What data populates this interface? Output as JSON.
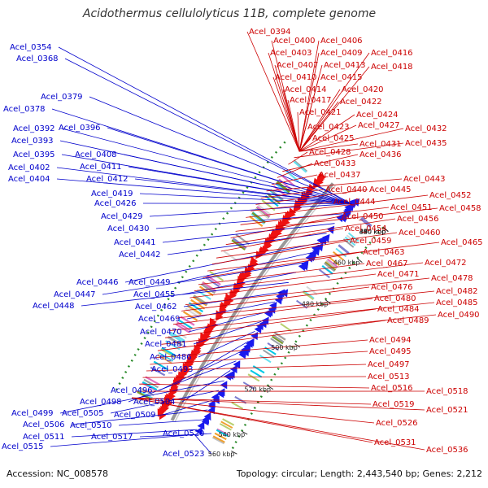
{
  "title": "Acidothermus cellulolyticus 11B, complete genome",
  "footer": {
    "accession": "Accession: NC_008578",
    "summary": "Topology: circular; Length: 2,443,540 bp; Genes: 2,212"
  },
  "colors": {
    "forward_feature": "#1a1aee",
    "reverse_feature": "#ee1111",
    "left_label": "#0000cc",
    "right_label": "#cc0000",
    "backbone": "#999999",
    "gc_skew_dots": "#2a8a2a"
  },
  "ticks": [
    "360 kbp",
    "380 kbp",
    "400 kbp",
    "420 kbp",
    "440 kbp",
    "460 kbp",
    "480 kbp",
    "500 kbp",
    "520 kbp",
    "540 kbp",
    "560 kbp"
  ],
  "left_labels": [
    "Acel_0354",
    "Acel_0368",
    "Acel_0379",
    "Acel_0378",
    "Acel_0396",
    "Acel_0392",
    "Acel_0393",
    "Acel_0395",
    "Acel_0408",
    "Acel_0411",
    "Acel_0402",
    "Acel_0404",
    "Acel_0412",
    "Acel_0419",
    "Acel_0426",
    "Acel_0429",
    "Acel_0430",
    "Acel_0441",
    "Acel_0442",
    "Acel_0446",
    "Acel_0449",
    "Acel_0447",
    "Acel_0455",
    "Acel_0448",
    "Acel_0462",
    "Acel_0469",
    "Acel_0470",
    "Acel_0481",
    "Acel_0486",
    "Acel_0493",
    "Acel_0496",
    "Acel_0498",
    "Acel_0504",
    "Acel_0499",
    "Acel_0505",
    "Acel_0509",
    "Acel_0506",
    "Acel_0510",
    "Acel_0511",
    "Acel_0517",
    "Acel_0520",
    "Acel_0515",
    "Acel_0523"
  ],
  "right_labels": [
    "Acel_0394",
    "Acel_0400",
    "Acel_0406",
    "Acel_0403",
    "Acel_0409",
    "Acel_0416",
    "Acel_0407",
    "Acel_0413",
    "Acel_0418",
    "Acel_0410",
    "Acel_0415",
    "Acel_0414",
    "Acel_0420",
    "Acel_0417",
    "Acel_0422",
    "Acel_0421",
    "Acel_0424",
    "Acel_0423",
    "Acel_0427",
    "Acel_0432",
    "Acel_0425",
    "Acel_0431",
    "Acel_0435",
    "Acel_0428",
    "Acel_0436",
    "Acel_0433",
    "Acel_0437",
    "Acel_0443",
    "Acel_0440",
    "Acel_0445",
    "Acel_0444",
    "Acel_0452",
    "Acel_0451",
    "Acel_0458",
    "Acel_0450",
    "Acel_0456",
    "Acel_0454",
    "Acel_0460",
    "Acel_0459",
    "Acel_0465",
    "Acel_0463",
    "Acel_0467",
    "Acel_0472",
    "Acel_0471",
    "Acel_0478",
    "Acel_0476",
    "Acel_0482",
    "Acel_0480",
    "Acel_0485",
    "Acel_0484",
    "Acel_0490",
    "Acel_0489",
    "Acel_0494",
    "Acel_0495",
    "Acel_0497",
    "Acel_0513",
    "Acel_0516",
    "Acel_0518",
    "Acel_0519",
    "Acel_0521",
    "Acel_0526",
    "Acel_0531",
    "Acel_0536"
  ]
}
